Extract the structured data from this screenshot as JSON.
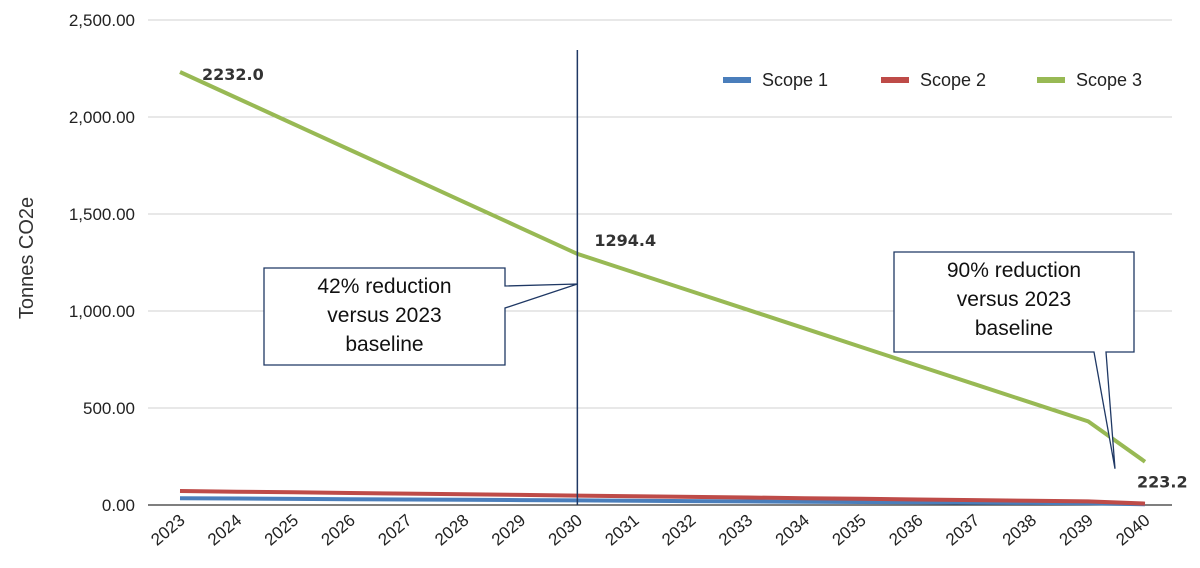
{
  "chart_data": {
    "type": "line",
    "title": "",
    "xlabel": "",
    "ylabel": "Tonnes CO2e",
    "categories": [
      "2023",
      "2024",
      "2025",
      "2026",
      "2027",
      "2028",
      "2029",
      "2030",
      "2031",
      "2032",
      "2033",
      "2034",
      "2035",
      "2036",
      "2037",
      "2038",
      "2039",
      "2040"
    ],
    "ylim": [
      0,
      2500
    ],
    "yticks": [
      "0.00",
      "500.00",
      "1,000.00",
      "1,500.00",
      "2,000.00",
      "2,500.00"
    ],
    "grid": true,
    "legend_position": "top-right",
    "series": [
      {
        "name": "Scope 1",
        "color": "#4a7ebb",
        "values": [
          35.0,
          33.4,
          31.7,
          30.1,
          28.5,
          26.9,
          25.2,
          23.6,
          22.0,
          20.3,
          18.7,
          17.1,
          15.5,
          13.8,
          12.2,
          10.6,
          8.9,
          3.5
        ]
      },
      {
        "name": "Scope 2",
        "color": "#be4b48",
        "values": [
          72.0,
          68.7,
          65.3,
          62.0,
          58.6,
          55.3,
          51.9,
          48.6,
          45.2,
          41.9,
          38.5,
          35.2,
          31.8,
          28.5,
          25.1,
          21.8,
          18.4,
          7.2
        ]
      },
      {
        "name": "Scope 3",
        "color": "#98b954",
        "values": [
          2232.0,
          2098.0,
          1964.1,
          1830.1,
          1696.2,
          1562.2,
          1428.3,
          1294.4,
          1198.4,
          1102.5,
          1006.5,
          910.6,
          814.6,
          718.7,
          622.7,
          526.8,
          430.8,
          223.2
        ]
      }
    ],
    "data_labels": [
      {
        "series": "Scope 3",
        "category": "2023",
        "text": "2232.0"
      },
      {
        "series": "Scope 3",
        "category": "2030",
        "text": "1294.4"
      },
      {
        "series": "Scope 3",
        "category": "2040",
        "text": "223.2"
      }
    ],
    "marker_line_category": "2030",
    "annotations": [
      {
        "text_lines": [
          "42% reduction",
          "versus 2023",
          "baseline"
        ],
        "points_to": "2030"
      },
      {
        "text_lines": [
          "90% reduction",
          "versus 2023",
          "baseline"
        ],
        "points_to": "2040"
      }
    ]
  }
}
